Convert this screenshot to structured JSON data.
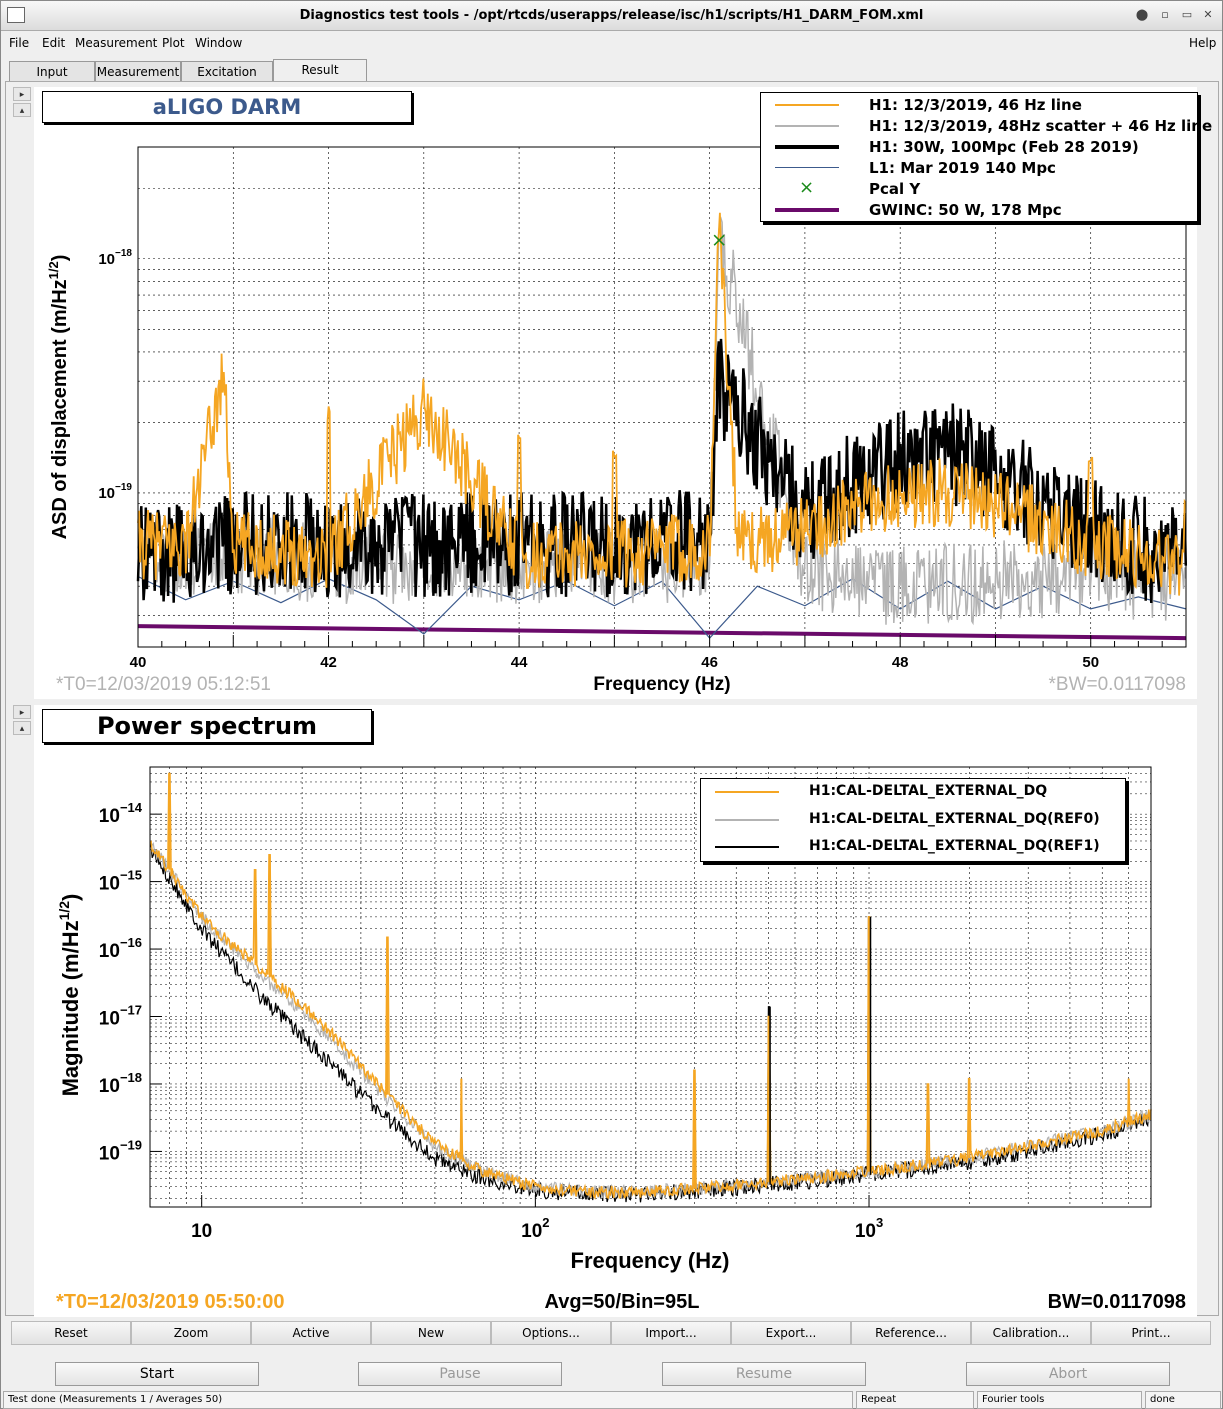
{
  "window": {
    "title": "Diagnostics test tools - /opt/rtcds/userapps/release/isc/h1/scripts/H1_DARM_FOM.xml",
    "controls": [
      "⬤",
      "▫",
      "▭",
      "✕"
    ]
  },
  "menu": {
    "items": [
      "File",
      "Edit",
      "Measurement",
      "Plot",
      "Window"
    ],
    "help": "Help"
  },
  "tabs": [
    "Input",
    "Measurement",
    "Excitation",
    "Result"
  ],
  "pad1": {
    "title": "aLIGO DARM",
    "ylabel": "ASD of displacement (m/Hz",
    "ylabel_sup": "1/2",
    "ylabel_end": ")",
    "xlabel": "Frequency (Hz)",
    "t0": "*T0=12/03/2019 05:12:51",
    "bw": "*BW=0.0117098",
    "xticks": [
      "40",
      "42",
      "44",
      "46",
      "48",
      "50"
    ],
    "yticks": [
      {
        "base": "10",
        "exp": "−18"
      },
      {
        "base": "10",
        "exp": "−19"
      }
    ]
  },
  "legend1": [
    {
      "label": "H1: 12/3/2019, 46 Hz line",
      "color": "#f5a623",
      "width": 2
    },
    {
      "label": "H1: 12/3/2019, 48Hz scatter + 46 Hz line",
      "color": "#b3b3b3",
      "width": 2
    },
    {
      "label": "H1: 30W, 100Mpc (Feb 28 2019)",
      "color": "#000000",
      "width": 4
    },
    {
      "label": "L1: Mar 2019 140 Mpc",
      "color": "#3c5a8c",
      "width": 1
    },
    {
      "label": "Pcal Y",
      "color": "#1a8a1a",
      "marker": "×"
    },
    {
      "label": "GWINC: 50 W, 178 Mpc",
      "color": "#6a0a6a",
      "width": 4
    }
  ],
  "pad2": {
    "title": "Power spectrum",
    "ylabel": "Magnitude (m/Hz",
    "ylabel_sup": "1/2",
    "ylabel_end": ")",
    "xlabel": "Frequency (Hz)",
    "t0": "*T0=12/03/2019 05:50:00",
    "avg": "Avg=50/Bin=95L",
    "bw": "BW=0.0117098",
    "xticks": [
      {
        "base": "10",
        "exp": ""
      },
      {
        "base": "10",
        "exp": "2"
      },
      {
        "base": "10",
        "exp": "3"
      }
    ],
    "yticks": [
      {
        "base": "10",
        "exp": "−14"
      },
      {
        "base": "10",
        "exp": "−15"
      },
      {
        "base": "10",
        "exp": "−16"
      },
      {
        "base": "10",
        "exp": "−17"
      },
      {
        "base": "10",
        "exp": "−18"
      },
      {
        "base": "10",
        "exp": "−19"
      }
    ]
  },
  "legend2": [
    {
      "label": "H1:CAL-DELTAL_EXTERNAL_DQ",
      "color": "#f5a623"
    },
    {
      "label": "H1:CAL-DELTAL_EXTERNAL_DQ(REF0)",
      "color": "#b3b3b3"
    },
    {
      "label": "H1:CAL-DELTAL_EXTERNAL_DQ(REF1)",
      "color": "#000000"
    }
  ],
  "chart_data": [
    {
      "type": "line",
      "title": "aLIGO DARM",
      "xlabel": "Frequency (Hz)",
      "ylabel": "ASD of displacement (m/Hz^1/2)",
      "xlim": [
        40,
        51
      ],
      "ylim": [
        2.2e-20,
        3e-18
      ],
      "yscale": "log",
      "grid": true,
      "legend_position": "top-right",
      "series": [
        {
          "name": "H1: 12/3/2019, 46 Hz line",
          "x": [
            40,
            40.5,
            40.9,
            41,
            42,
            43,
            44,
            45,
            46,
            46.1,
            46.3,
            47,
            48,
            48.5,
            49,
            50,
            51
          ],
          "y": [
            6e-20,
            6e-20,
            3.3e-19,
            6e-20,
            5.5e-20,
            2.3e-19,
            5.5e-20,
            5.5e-20,
            6e-20,
            1.4e-18,
            6e-20,
            7e-20,
            1e-19,
            1e-19,
            9e-20,
            6e-20,
            5e-20
          ],
          "spikes": [
            [
              40.9,
              3.3e-19
            ],
            [
              42.0,
              2.5e-19
            ],
            [
              43.0,
              2.3e-19
            ],
            [
              44.0,
              2e-19
            ],
            [
              45.0,
              1.8e-19
            ],
            [
              46.1,
              1.4e-18
            ],
            [
              50.0,
              1.5e-19
            ],
            [
              51.0,
              1.1e-19
            ]
          ]
        },
        {
          "name": "H1: 12/3/2019, 48Hz scatter + 46 Hz line",
          "x": [
            40,
            41,
            42,
            43,
            44,
            45,
            46,
            46.1,
            47,
            48,
            49,
            50,
            51
          ],
          "y": [
            5.5e-20,
            5.5e-20,
            5e-20,
            5e-20,
            5e-20,
            5e-20,
            5e-20,
            1.3e-18,
            4.5e-20,
            4e-20,
            4.2e-20,
            4.5e-20,
            4e-20
          ]
        },
        {
          "name": "H1: 30W, 100Mpc (Feb 28 2019)",
          "x": [
            40,
            41,
            42,
            43,
            44,
            45,
            46,
            46.1,
            47,
            47.5,
            48,
            48.5,
            49,
            50,
            51
          ],
          "y": [
            5.5e-20,
            6e-20,
            6e-20,
            6e-20,
            6e-20,
            6e-20,
            6.5e-20,
            3e-19,
            8e-20,
            1.1e-19,
            1.4e-19,
            1.5e-19,
            1.2e-19,
            7e-20,
            5e-20
          ]
        },
        {
          "name": "L1: Mar 2019 140 Mpc",
          "x": [
            40,
            40.5,
            41,
            41.5,
            42,
            42.5,
            43,
            43.5,
            44,
            44.5,
            45,
            45.5,
            46,
            46.5,
            47,
            47.5,
            48,
            48.5,
            49,
            49.5,
            50,
            50.5,
            51
          ],
          "y": [
            4.4e-20,
            3.5e-20,
            4.2e-20,
            3.4e-20,
            4.3e-20,
            3.5e-20,
            2.5e-20,
            4e-20,
            3.5e-20,
            4.2e-20,
            3.3e-20,
            4.2e-20,
            2.4e-20,
            4e-20,
            3.3e-20,
            4.3e-20,
            3.2e-20,
            4.2e-20,
            3.2e-20,
            4e-20,
            3.2e-20,
            3.6e-20,
            3.2e-20
          ]
        },
        {
          "name": "Pcal Y",
          "x": [
            46.1
          ],
          "y": [
            1.2e-18
          ]
        },
        {
          "name": "GWINC: 50 W, 178 Mpc",
          "x": [
            40,
            51
          ],
          "y": [
            2.7e-20,
            2.4e-20
          ]
        }
      ]
    },
    {
      "type": "line",
      "title": "Power spectrum",
      "xlabel": "Frequency (Hz)",
      "ylabel": "Magnitude (m/Hz^1/2)",
      "xlim": [
        7,
        7000
      ],
      "ylim": [
        1.5e-20,
        5e-14
      ],
      "xscale": "log",
      "yscale": "log",
      "grid": true,
      "legend_position": "top-right",
      "series": [
        {
          "name": "H1:CAL-DELTAL_EXTERNAL_DQ",
          "x": [
            7,
            8,
            10,
            12,
            15,
            20,
            25,
            30,
            40,
            50,
            70,
            100,
            150,
            200,
            300,
            500,
            1000,
            2000,
            3000,
            5000,
            7000
          ],
          "y": [
            3.5e-15,
            1.5e-15,
            3e-16,
            1.3e-16,
            5e-17,
            1.5e-17,
            5e-18,
            1.8e-18,
            4e-19,
            1.3e-19,
            5e-20,
            3e-20,
            2.5e-20,
            2.5e-20,
            2.8e-20,
            3.5e-20,
            5e-20,
            8e-20,
            1.2e-19,
            2e-19,
            3.5e-19
          ],
          "spikes": [
            [
              8,
              4e-14
            ],
            [
              14.5,
              1.5e-15
            ],
            [
              16,
              2.5e-15
            ],
            [
              36,
              1.5e-16
            ],
            [
              60,
              1.2e-18
            ],
            [
              300,
              1.6e-18
            ],
            [
              500,
              1e-17
            ],
            [
              1000,
              3e-16
            ],
            [
              1500,
              1e-18
            ],
            [
              2000,
              1.2e-18
            ],
            [
              6000,
              1.2e-18
            ]
          ]
        },
        {
          "name": "H1:CAL-DELTAL_EXTERNAL_DQ(REF0)",
          "x": [
            7,
            8,
            10,
            12,
            15,
            20,
            25,
            30,
            40,
            50,
            70,
            100,
            150,
            200,
            300,
            500,
            1000,
            2000,
            3000,
            5000,
            7000
          ],
          "y": [
            3.5e-15,
            1.5e-15,
            3e-16,
            1.2e-16,
            4e-17,
            1.2e-17,
            4e-18,
            1.5e-18,
            3.5e-19,
            1.2e-19,
            5e-20,
            3e-20,
            2.5e-20,
            2.5e-20,
            2.8e-20,
            3.5e-20,
            5e-20,
            8e-20,
            1.2e-19,
            2e-19,
            3.5e-19
          ]
        },
        {
          "name": "H1:CAL-DELTAL_EXTERNAL_DQ(REF1)",
          "x": [
            7,
            8,
            10,
            12,
            15,
            20,
            25,
            30,
            40,
            50,
            70,
            100,
            150,
            200,
            300,
            500,
            1000,
            2000,
            3000,
            5000,
            7000
          ],
          "y": [
            3e-15,
            1.2e-15,
            2e-16,
            7e-17,
            2e-17,
            5e-18,
            1.8e-18,
            7e-19,
            2e-19,
            8e-20,
            4e-20,
            2.7e-20,
            2.3e-20,
            2.3e-20,
            2.6e-20,
            3.2e-20,
            4.5e-20,
            7e-20,
            1e-19,
            1.8e-19,
            3.2e-19
          ],
          "spikes": [
            [
              500,
              1.4e-17
            ],
            [
              1000,
              3e-16
            ]
          ]
        }
      ]
    }
  ],
  "bottom_buttons": [
    "Reset",
    "Zoom",
    "Active",
    "New",
    "Options...",
    "Import...",
    "Export...",
    "Reference...",
    "Calibration...",
    "Print..."
  ],
  "big_buttons": [
    "Start",
    "Pause",
    "Resume",
    "Abort"
  ],
  "statusbar": {
    "message": "Test done (Measurements 1 / Averages 50)",
    "repeat": "Repeat",
    "fourier": "Fourier tools",
    "state": "done"
  }
}
